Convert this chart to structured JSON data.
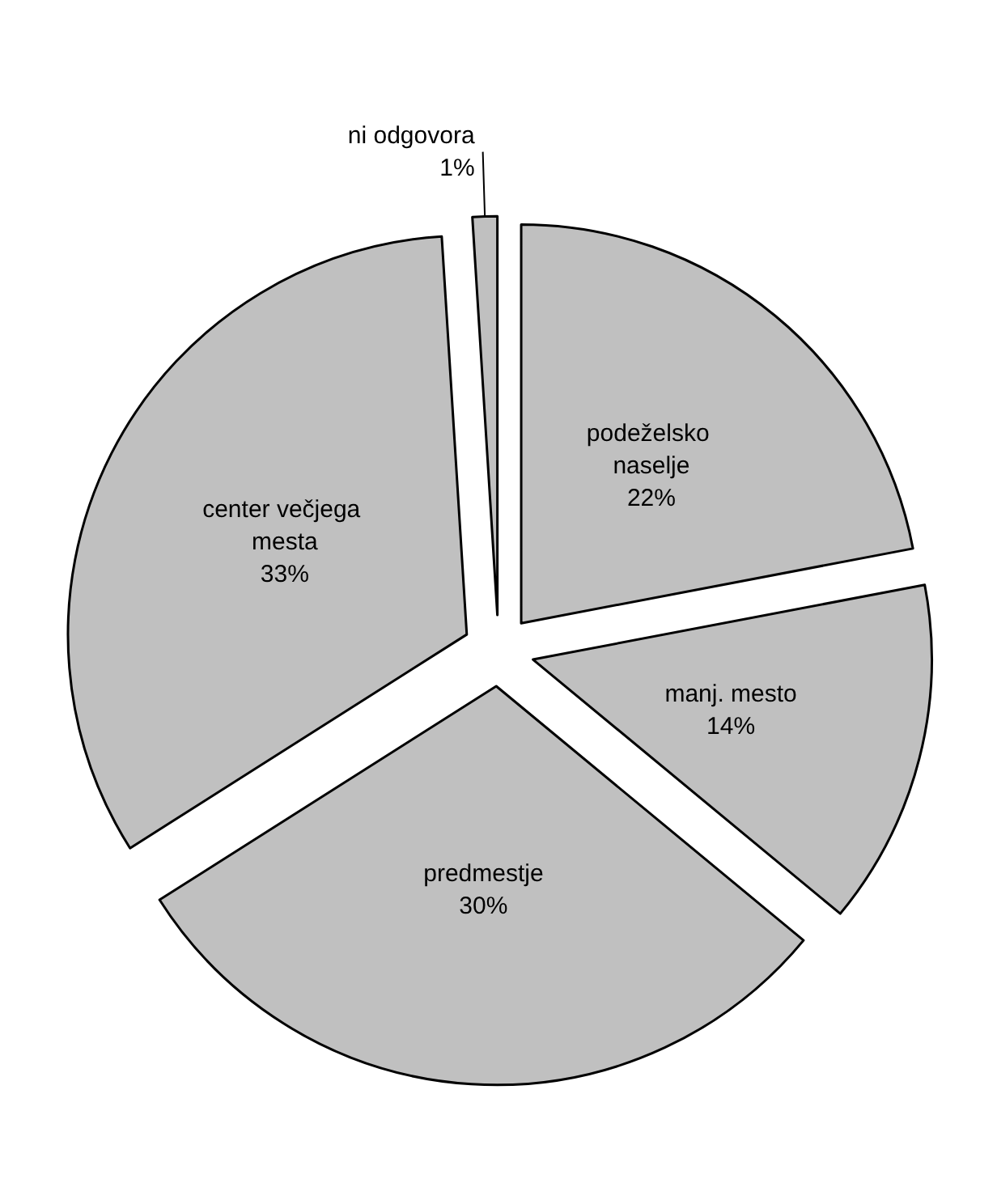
{
  "chart_data": {
    "type": "pie",
    "categories": [
      "podeželsko naselje",
      "manj. mesto",
      "predmestje",
      "center večjega mesta",
      "ni odgovora"
    ],
    "values": [
      22,
      14,
      30,
      33,
      1
    ],
    "value_labels": [
      "22%",
      "14%",
      "30%",
      "33%",
      "1%"
    ],
    "colors": [
      "#c0c0c0",
      "#c0c0c0",
      "#c0c0c0",
      "#c0c0c0",
      "#c0c0c0"
    ],
    "legend": false
  }
}
